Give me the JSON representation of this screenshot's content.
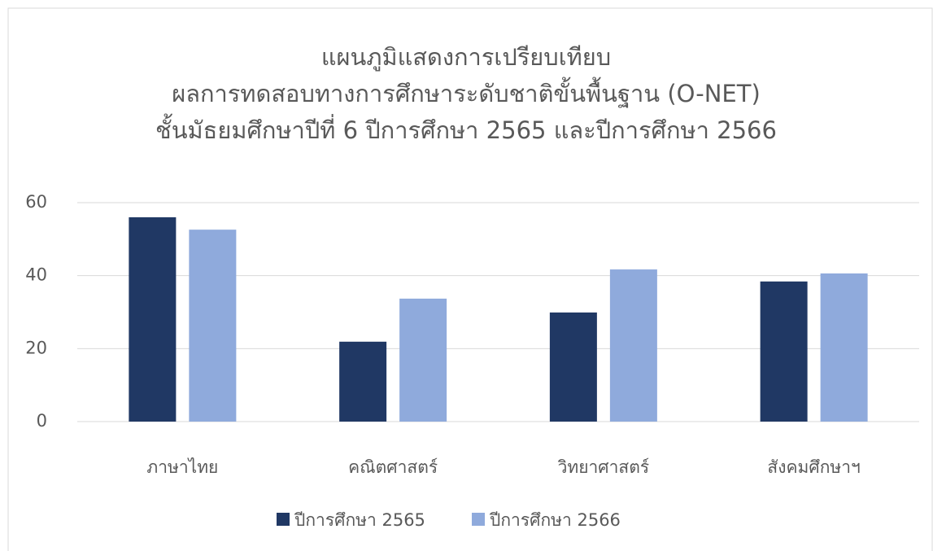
{
  "chart_data": {
    "type": "bar",
    "title": [
      "แผนภูมิแสดงการเปรียบเทียบ",
      "ผลการทดสอบทางการศึกษาระดับชาติขั้นพื้นฐาน (O-NET)",
      "ชั้นมัธยมศึกษาปีที่ 6 ปีการศึกษา 2565 และปีการศึกษา 2566"
    ],
    "categories": [
      "ภาษาไทย",
      "คณิตศาสตร์",
      "วิทยาศาสตร์",
      "สังคมศึกษาฯ"
    ],
    "series": [
      {
        "name": "ปีการศึกษา 2565",
        "color": "#203864",
        "values": [
          56.0,
          21.9,
          29.9,
          38.4
        ]
      },
      {
        "name": "ปีการศึกษา 2566",
        "color": "#8faadc",
        "values": [
          52.6,
          33.7,
          41.7,
          40.6
        ]
      }
    ],
    "ylim": [
      0,
      60
    ],
    "yticks": [
      0,
      20,
      40,
      60
    ],
    "grid": true,
    "legend": "bottom"
  }
}
